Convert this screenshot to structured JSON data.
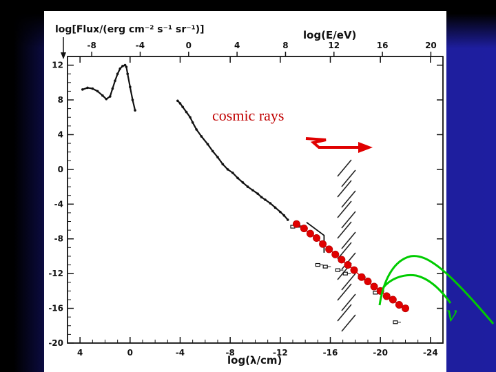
{
  "chart_data": {
    "type": "scatter",
    "ylabel": "log[Flux/(erg cm⁻² s⁻¹ sr⁻¹)]",
    "xlabel_top": "log(E/eV)",
    "xlabel_bottom": "log(λ/cm)",
    "xlim_bottom": [
      5,
      -25
    ],
    "xlim_top": [
      -10,
      21
    ],
    "ylim": [
      -20,
      13
    ],
    "x_bottom_ticks": [
      "4",
      "0",
      "-4",
      "-8",
      "-12",
      "-16",
      "-20",
      "-24"
    ],
    "x_top_ticks": [
      "-8",
      "-4",
      "0",
      "4",
      "8",
      "12",
      "16",
      "20"
    ],
    "y_ticks": [
      "12",
      "8",
      "4",
      "0",
      "-4",
      "-8",
      "-12",
      "-16",
      "-20"
    ],
    "annotations": {
      "cosmic_rays": "cosmic rays",
      "neutrino": "ν"
    },
    "colors": {
      "cosmic_rays": "#e00000",
      "neutrino": "#00cc00",
      "data": "#111111",
      "hatch": "#222222"
    },
    "series": [
      {
        "values": [
          [
            3.8,
            9.2
          ],
          [
            3.4,
            9.4
          ],
          [
            3.0,
            9.3
          ],
          [
            2.6,
            9.0
          ],
          [
            2.2,
            8.5
          ],
          [
            1.9,
            8.1
          ],
          [
            1.6,
            8.4
          ],
          [
            1.4,
            9.3
          ],
          [
            1.2,
            10.2
          ],
          [
            1.0,
            11.0
          ],
          [
            0.8,
            11.6
          ],
          [
            0.6,
            11.9
          ],
          [
            0.4,
            12.0
          ],
          [
            0.3,
            11.8
          ],
          [
            0.2,
            11.0
          ],
          [
            0.0,
            9.5
          ],
          [
            -0.2,
            8.0
          ],
          [
            -0.4,
            6.8
          ]
        ]
      },
      {
        "values": [
          [
            -3.8,
            7.9
          ],
          [
            -4.0,
            7.6
          ],
          [
            -4.2,
            7.2
          ],
          [
            -4.5,
            6.6
          ],
          [
            -4.8,
            6.0
          ],
          [
            -5.0,
            5.4
          ],
          [
            -5.3,
            4.6
          ],
          [
            -5.7,
            3.8
          ],
          [
            -6.2,
            2.9
          ],
          [
            -6.6,
            2.1
          ],
          [
            -7.0,
            1.4
          ],
          [
            -7.4,
            0.6
          ],
          [
            -7.8,
            0.0
          ],
          [
            -8.2,
            -0.4
          ],
          [
            -8.6,
            -1.0
          ],
          [
            -9.0,
            -1.5
          ],
          [
            -9.4,
            -2.0
          ],
          [
            -9.8,
            -2.4
          ],
          [
            -10.2,
            -2.8
          ],
          [
            -10.5,
            -3.2
          ],
          [
            -10.8,
            -3.5
          ],
          [
            -11.2,
            -3.9
          ],
          [
            -11.6,
            -4.4
          ],
          [
            -12.0,
            -4.9
          ],
          [
            -12.3,
            -5.3
          ],
          [
            -12.6,
            -5.8
          ]
        ]
      },
      {
        "values": [
          [
            -13.3,
            -6.3
          ],
          [
            -13.9,
            -6.8
          ],
          [
            -14.4,
            -7.4
          ],
          [
            -14.9,
            -7.9
          ],
          [
            -15.4,
            -8.6
          ],
          [
            -15.9,
            -9.2
          ],
          [
            -16.4,
            -9.8
          ],
          [
            -16.9,
            -10.4
          ],
          [
            -17.4,
            -11.0
          ],
          [
            -17.9,
            -11.6
          ],
          [
            -18.5,
            -12.4
          ],
          [
            -19.0,
            -12.9
          ],
          [
            -19.5,
            -13.5
          ],
          [
            -20.0,
            -14.0
          ],
          [
            -20.5,
            -14.6
          ],
          [
            -21.0,
            -15.0
          ],
          [
            -21.5,
            -15.6
          ],
          [
            -22.0,
            -16.0
          ]
        ]
      }
    ]
  }
}
